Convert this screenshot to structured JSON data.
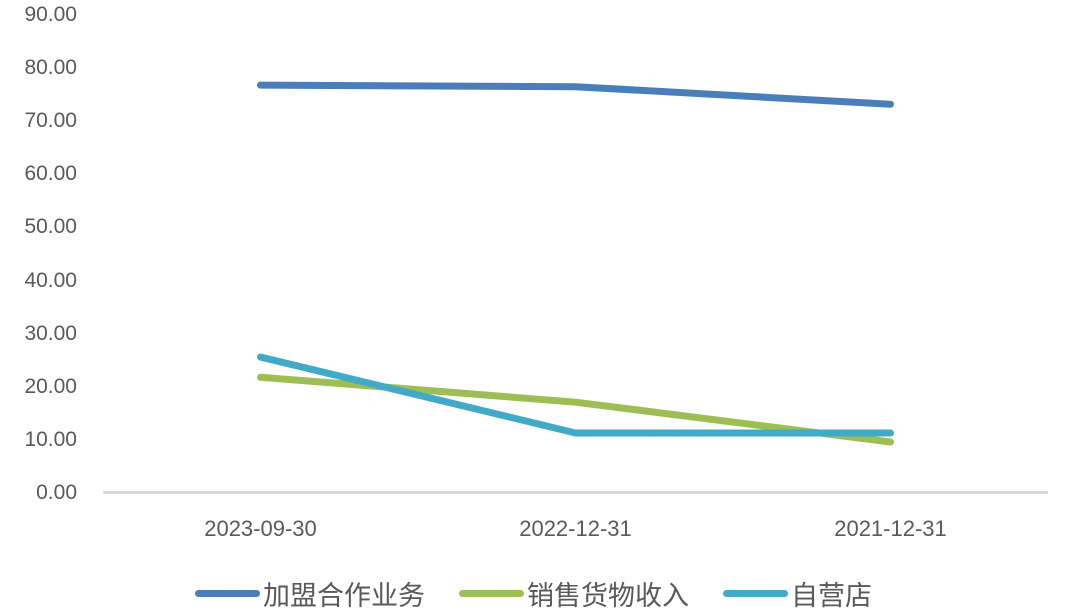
{
  "chart_data": {
    "type": "line",
    "title": "",
    "xlabel": "",
    "ylabel": "",
    "categories": [
      "2023-09-30",
      "2022-12-31",
      "2021-12-31"
    ],
    "series": [
      {
        "name": "加盟合作业务",
        "color": "#4a7ebb",
        "values": [
          76.8,
          76.5,
          73.2
        ]
      },
      {
        "name": "销售货物收入",
        "color": "#9cbe53",
        "values": [
          21.8,
          17.1,
          9.6
        ]
      },
      {
        "name": "自营店",
        "color": "#41abc7",
        "values": [
          25.6,
          11.3,
          11.3
        ]
      }
    ],
    "yticks": [
      "0.00",
      "10.00",
      "20.00",
      "30.00",
      "40.00",
      "50.00",
      "60.00",
      "70.00",
      "80.00",
      "90.00"
    ],
    "ytick_values": [
      0,
      10,
      20,
      30,
      40,
      50,
      60,
      70,
      80,
      90
    ],
    "ylim": [
      0,
      90
    ],
    "grid": false,
    "legend_position": "bottom",
    "axis_color": "#d9d9d9",
    "text_color": "#595959",
    "background_color": "#ffffff"
  }
}
